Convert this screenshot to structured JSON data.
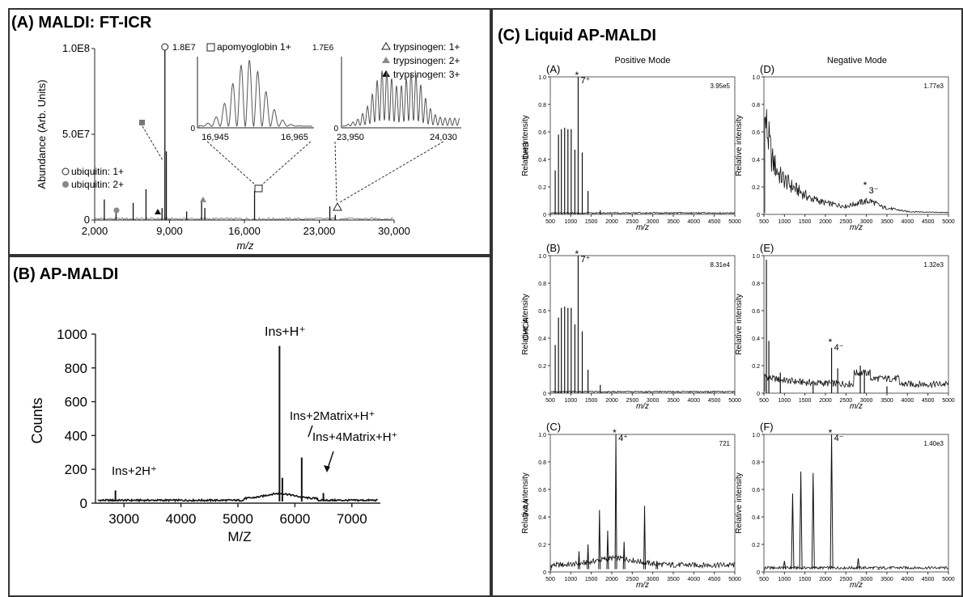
{
  "panels": {
    "a": {
      "title": "(A) MALDI: FT-ICR",
      "ylabel": "Abundance (Arb. Units)",
      "xlabel": "m/z",
      "x_ticks": [
        "2,000",
        "9,000",
        "16,000",
        "23,000",
        "30,000"
      ],
      "y_ticks": [
        "0",
        "5.0E7",
        "1.0E8"
      ],
      "legend_ubiquitin": [
        "ubiquitin: 1+",
        "ubiquitin: 2+"
      ],
      "legend_trypsinogen": [
        "trypsinogen: 1+",
        "trypsinogen: 2+",
        "trypsinogen: 3+"
      ],
      "peak_label_1": "1.8E7",
      "inset1": {
        "label": "apomyoglobin 1+",
        "scale": "1.7E6",
        "x_ticks": [
          "16,945",
          "16,965"
        ],
        "y0": "0"
      },
      "inset2": {
        "scale": "1.7E6",
        "x_ticks": [
          "23,950",
          "24,030"
        ],
        "y0": "0"
      }
    },
    "b": {
      "title": "(B) AP-MALDI",
      "ylabel": "Counts",
      "xlabel": "M/Z",
      "x_ticks": [
        "3000",
        "4000",
        "5000",
        "6000",
        "7000"
      ],
      "y_ticks": [
        "0",
        "200",
        "400",
        "600",
        "800",
        "1000"
      ],
      "annotations": [
        "Ins+H⁺",
        "Ins+2H⁺",
        "Ins+2Matrix+H⁺",
        "Ins+4Matrix+H⁺"
      ]
    },
    "c": {
      "title": "(C) Liquid AP-MALDI",
      "col_titles": [
        "Positive Mode",
        "Negative Mode"
      ],
      "row_labels": [
        "DHB",
        "CHCA",
        "9-AA"
      ],
      "sub_ylabel": "Relative intensity",
      "sub_xlabel": "m/z",
      "x_ticks": [
        "500",
        "1000",
        "1500",
        "2000",
        "2500",
        "3000",
        "3500",
        "4000",
        "4500",
        "5000"
      ],
      "y_ticks": [
        "0",
        "0.2",
        "0.4",
        "0.6",
        "0.8",
        "1.0"
      ],
      "subplots": [
        {
          "id": "(A)",
          "value": "3.95e5",
          "peak": "7⁺"
        },
        {
          "id": "(D)",
          "value": "1.77e3",
          "peak": "3⁻"
        },
        {
          "id": "(B)",
          "value": "8.31e4",
          "peak": "7⁺"
        },
        {
          "id": "(E)",
          "value": "1.32e3",
          "peak": "4⁻"
        },
        {
          "id": "(C)",
          "value": "721",
          "peak": "4⁺"
        },
        {
          "id": "(F)",
          "value": "1.40e3",
          "peak": "4⁻"
        }
      ]
    }
  },
  "chart_data": [
    {
      "type": "line",
      "title": "(A) MALDI: FT-ICR",
      "xlabel": "m/z",
      "ylabel": "Abundance (Arb. Units)",
      "xlim": [
        2000,
        30000
      ],
      "ylim": [
        0,
        100000000
      ],
      "peaks": [
        [
          2900,
          12000000
        ],
        [
          4000,
          6000000
        ],
        [
          5600,
          10000000
        ],
        [
          6800,
          18000000
        ],
        [
          8300,
          7000000
        ],
        [
          8565,
          100000000
        ],
        [
          8700,
          40000000
        ],
        [
          10600,
          5000000
        ],
        [
          12000,
          12000000
        ],
        [
          12300,
          7000000
        ],
        [
          16950,
          17000000
        ],
        [
          23990,
          8000000
        ],
        [
          24500,
          3000000
        ]
      ]
    },
    {
      "type": "line",
      "title": "(B) AP-MALDI",
      "xlabel": "M/Z",
      "ylabel": "Counts",
      "xlim": [
        2500,
        7500
      ],
      "ylim": [
        0,
        1000
      ],
      "peaks": [
        [
          2850,
          75
        ],
        [
          5730,
          930
        ],
        [
          5780,
          150
        ],
        [
          6120,
          270
        ],
        [
          6500,
          60
        ]
      ]
    },
    {
      "type": "line",
      "title": "(A)",
      "xlabel": "m/z",
      "ylabel": "Relative intensity",
      "xlim": [
        500,
        5000
      ],
      "ylim": [
        0,
        1.0
      ],
      "peaks": [
        [
          620,
          0.32
        ],
        [
          700,
          0.58
        ],
        [
          770,
          0.62
        ],
        [
          850,
          0.63
        ],
        [
          930,
          0.62
        ],
        [
          1010,
          0.62
        ],
        [
          1100,
          0.47
        ],
        [
          1180,
          1.0
        ],
        [
          1280,
          0.45
        ],
        [
          1420,
          0.17
        ],
        [
          1720,
          0.03
        ]
      ]
    },
    {
      "type": "line",
      "title": "(D)",
      "xlabel": "m/z",
      "ylabel": "Relative intensity",
      "xlim": [
        500,
        5000
      ],
      "ylim": [
        0,
        1.0
      ],
      "envelope": [
        [
          550,
          0.85
        ],
        [
          700,
          0.5
        ],
        [
          900,
          0.35
        ],
        [
          1200,
          0.25
        ],
        [
          1600,
          0.15
        ],
        [
          2000,
          0.1
        ],
        [
          2500,
          0.07
        ],
        [
          2900,
          0.11
        ],
        [
          3100,
          0.12
        ],
        [
          3400,
          0.06
        ],
        [
          4000,
          0.02
        ],
        [
          5000,
          0.01
        ]
      ]
    },
    {
      "type": "line",
      "title": "(B)",
      "xlabel": "m/z",
      "ylabel": "Relative intensity",
      "xlim": [
        500,
        5000
      ],
      "ylim": [
        0,
        1.0
      ],
      "peaks": [
        [
          620,
          0.35
        ],
        [
          700,
          0.55
        ],
        [
          770,
          0.62
        ],
        [
          850,
          0.63
        ],
        [
          930,
          0.62
        ],
        [
          1010,
          0.62
        ],
        [
          1100,
          0.5
        ],
        [
          1180,
          1.0
        ],
        [
          1280,
          0.45
        ],
        [
          1420,
          0.17
        ],
        [
          1720,
          0.06
        ]
      ]
    },
    {
      "type": "line",
      "title": "(E)",
      "xlabel": "m/z",
      "ylabel": "Relative intensity",
      "xlim": [
        500,
        5000
      ],
      "ylim": [
        0,
        1.0
      ],
      "peaks": [
        [
          560,
          0.97
        ],
        [
          620,
          0.38
        ],
        [
          900,
          0.15
        ],
        [
          1700,
          0.08
        ],
        [
          2150,
          0.33
        ],
        [
          2300,
          0.18
        ],
        [
          2850,
          0.2
        ],
        [
          2950,
          0.16
        ],
        [
          3500,
          0.05
        ]
      ]
    },
    {
      "type": "line",
      "title": "(C)",
      "xlabel": "m/z",
      "ylabel": "Relative intensity",
      "xlim": [
        500,
        5000
      ],
      "ylim": [
        0,
        1.0
      ],
      "peaks": [
        [
          1200,
          0.15
        ],
        [
          1420,
          0.2
        ],
        [
          1700,
          0.45
        ],
        [
          1900,
          0.3
        ],
        [
          2100,
          1.0
        ],
        [
          2300,
          0.22
        ],
        [
          2800,
          0.48
        ],
        [
          3100,
          0.08
        ]
      ]
    },
    {
      "type": "line",
      "title": "(F)",
      "xlabel": "m/z",
      "ylabel": "Relative intensity",
      "xlim": [
        500,
        5000
      ],
      "ylim": [
        0,
        1.0
      ],
      "peaks": [
        [
          1000,
          0.08
        ],
        [
          1200,
          0.57
        ],
        [
          1400,
          0.73
        ],
        [
          1700,
          0.72
        ],
        [
          2150,
          1.0
        ],
        [
          2800,
          0.1
        ],
        [
          3300,
          0.02
        ]
      ]
    }
  ]
}
